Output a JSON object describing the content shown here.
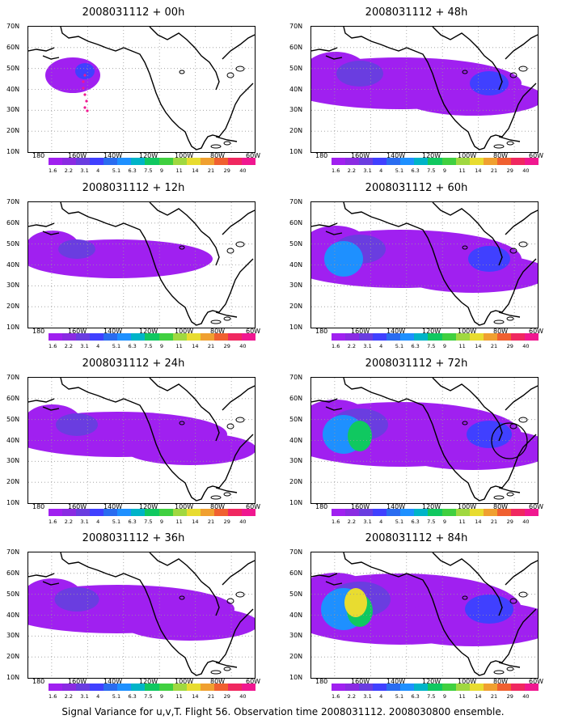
{
  "figure": {
    "caption": "Signal Variance for u,v,T. Flight 56. Observation time 2008031112. 2008030800 ensemble."
  },
  "axes": {
    "lat_labels": [
      "70N",
      "60N",
      "50N",
      "40N",
      "30N",
      "20N",
      "10N"
    ],
    "lon_labels": [
      "180",
      "160W",
      "140W",
      "120W",
      "100W",
      "80W",
      "60W"
    ]
  },
  "colorbar": {
    "labels": [
      "1.6",
      "2.2",
      "3.1",
      "4",
      "5.1",
      "6.3",
      "7.5",
      "9",
      "11",
      "14",
      "21",
      "29",
      "40"
    ],
    "colors": [
      "#a020f0",
      "#8a2be2",
      "#6a3de0",
      "#4040ff",
      "#2a6cf0",
      "#1e90ff",
      "#00b4c8",
      "#10c860",
      "#40d040",
      "#a0d840",
      "#e8dc30",
      "#f0a030",
      "#f06030",
      "#f02860",
      "#f01890"
    ]
  },
  "panels": [
    {
      "id": "00h",
      "title": "2008031112 + 00h",
      "level": 0
    },
    {
      "id": "48h",
      "title": "2008031112 + 48h",
      "level": 3
    },
    {
      "id": "12h",
      "title": "2008031112 + 12h",
      "level": 1
    },
    {
      "id": "60h",
      "title": "2008031112 + 60h",
      "level": 4
    },
    {
      "id": "24h",
      "title": "2008031112 + 24h",
      "level": 2
    },
    {
      "id": "72h",
      "title": "2008031112 + 72h",
      "level": 5
    },
    {
      "id": "36h",
      "title": "2008031112 + 36h",
      "level": 2.5
    },
    {
      "id": "84h",
      "title": "2008031112 + 84h",
      "level": 6
    }
  ]
}
